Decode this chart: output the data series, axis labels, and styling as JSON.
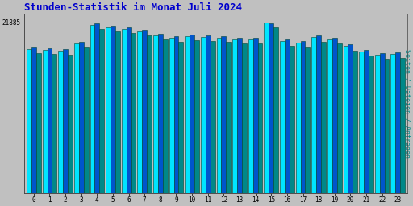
{
  "title": "Stunden-Statistik im Monat Juli 2024",
  "title_color": "#0000cc",
  "title_fontsize": 9,
  "ylabel": "Seiten / Dateien / Anfragen",
  "ylabel_color": "#008888",
  "ylabel_fontsize": 6,
  "ytick_label": "21885",
  "background_color": "#c0c0c0",
  "plot_bg_color": "#c0c0c0",
  "bar_color_cyan": "#00e5ff",
  "bar_color_blue": "#0055cc",
  "bar_color_teal": "#008888",
  "bar_edgecolor": "#004433",
  "hours": [
    0,
    1,
    2,
    3,
    4,
    5,
    6,
    7,
    8,
    9,
    10,
    11,
    12,
    13,
    14,
    15,
    16,
    17,
    18,
    19,
    20,
    21,
    22,
    23
  ],
  "values_pages": [
    18500,
    18400,
    18300,
    19200,
    21600,
    21200,
    21000,
    20700,
    20200,
    19900,
    20100,
    20000,
    19900,
    19700,
    19700,
    21885,
    19500,
    19300,
    20000,
    19700,
    18900,
    18200,
    17700,
    17800
  ],
  "values_files": [
    18700,
    18600,
    18500,
    19400,
    21800,
    21400,
    21200,
    20900,
    20400,
    20100,
    20300,
    20200,
    20100,
    19900,
    19900,
    21800,
    19700,
    19500,
    20200,
    19900,
    19100,
    18400,
    17900,
    18000
  ],
  "values_requests": [
    17900,
    17800,
    17700,
    18700,
    21000,
    20700,
    20500,
    20200,
    19700,
    19400,
    19600,
    19500,
    19400,
    19200,
    19200,
    21200,
    18900,
    18700,
    19400,
    19200,
    18300,
    17600,
    17200,
    17300
  ],
  "xlim": [
    -0.6,
    23.6
  ],
  "ylim": [
    0,
    23000
  ],
  "ytick_pos": 21885,
  "figsize": [
    5.12,
    2.56
  ],
  "dpi": 100
}
